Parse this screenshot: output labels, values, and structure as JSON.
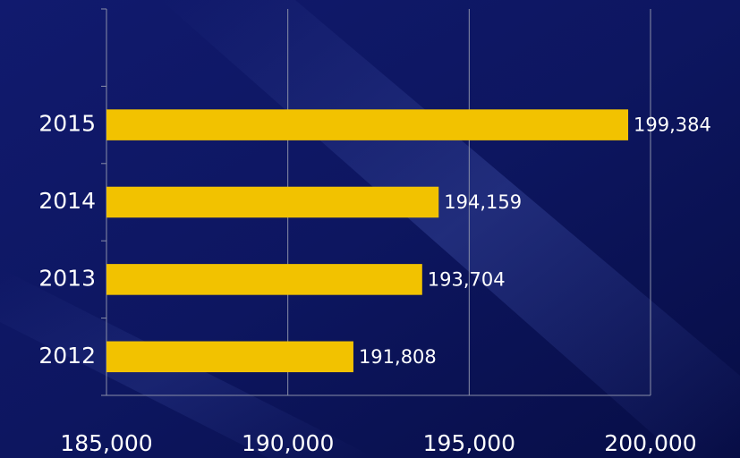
{
  "chart_data": {
    "type": "bar",
    "orientation": "horizontal",
    "categories": [
      "2012",
      "2013",
      "2014",
      "2015"
    ],
    "values": [
      191808,
      193704,
      194159,
      199384
    ],
    "value_labels": [
      "191,808",
      "193,704",
      "194,159",
      "199,384"
    ],
    "color": "#f2c200",
    "xlim": [
      185000,
      200000
    ],
    "xticks": [
      {
        "value": 185000,
        "label": "185,000"
      },
      {
        "value": 190000,
        "label": "190,000"
      },
      {
        "value": 195000,
        "label": "195,000"
      },
      {
        "value": 200000,
        "label": "200,000"
      }
    ],
    "grid": true
  }
}
